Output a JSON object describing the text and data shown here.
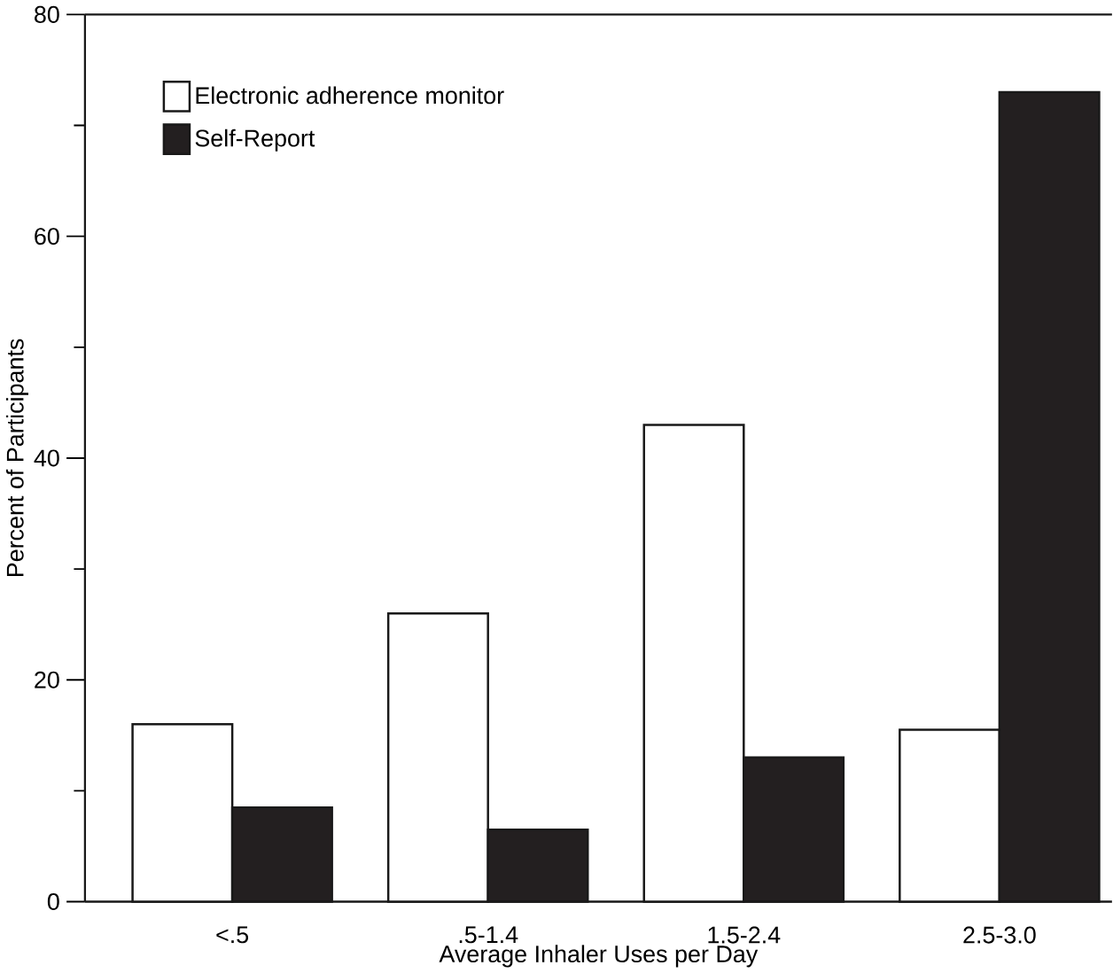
{
  "chart_data": {
    "type": "bar",
    "xlabel": "Average Inhaler Uses per Day",
    "ylabel": "Percent of Participants",
    "categories": [
      "<.5",
      ".5-1.4",
      "1.5-2.4",
      "2.5-3.0"
    ],
    "series": [
      {
        "name": "Electronic adherence monitor",
        "color": "#ffffff",
        "values": [
          16,
          26,
          43,
          15.5
        ]
      },
      {
        "name": "Self-Report",
        "color": "#231f20",
        "values": [
          8.5,
          6.5,
          13,
          73
        ]
      }
    ],
    "ylim": [
      0,
      80
    ],
    "yticks": [
      0,
      20,
      40,
      60,
      80
    ],
    "legend": "top left",
    "grid": false
  }
}
